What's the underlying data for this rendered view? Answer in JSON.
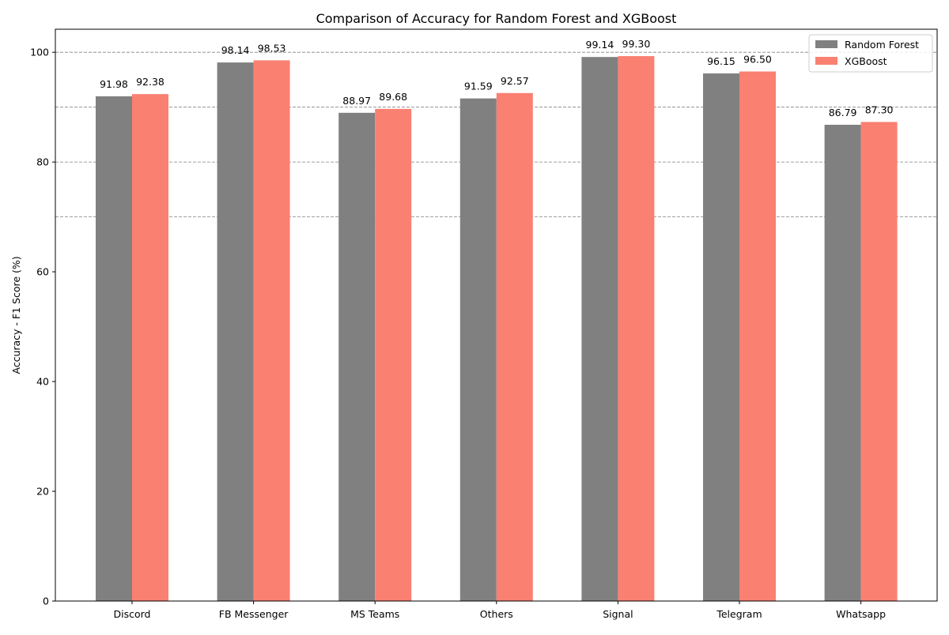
{
  "chart_data": {
    "type": "bar",
    "title": "Comparison of Accuracy for Random Forest and XGBoost",
    "xlabel": "",
    "ylabel": "Accuracy - F1 Score (%)",
    "categories": [
      "Discord",
      "FB Messenger",
      "MS Teams",
      "Others",
      "Signal",
      "Telegram",
      "Whatsapp"
    ],
    "series": [
      {
        "name": "Random Forest",
        "color": "#808080",
        "values": [
          91.98,
          98.14,
          88.97,
          91.59,
          99.14,
          96.15,
          86.79
        ],
        "labels": [
          "91.98",
          "98.14",
          "88.97",
          "91.59",
          "99.14",
          "96.15",
          "86.79"
        ]
      },
      {
        "name": "XGBoost",
        "color": "#fa8072",
        "values": [
          92.38,
          98.53,
          89.68,
          92.57,
          99.3,
          96.5,
          87.3
        ],
        "labels": [
          "92.38",
          "98.53",
          "89.68",
          "92.57",
          "99.30",
          "96.50",
          "87.30"
        ]
      }
    ],
    "ylim": [
      0,
      104.2
    ],
    "yticks": [
      0,
      20,
      40,
      60,
      80,
      100
    ],
    "ytick_labels": [
      "0",
      "20",
      "40",
      "60",
      "80",
      "100"
    ],
    "gridlines_y": [
      70,
      80,
      90,
      100
    ],
    "grid": true,
    "grid_style": "dashed",
    "legend": "top-right"
  }
}
